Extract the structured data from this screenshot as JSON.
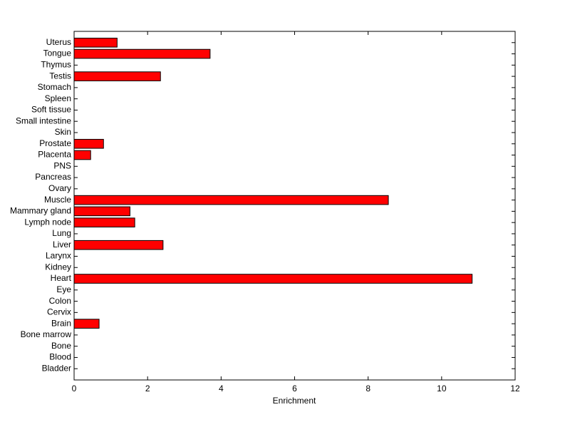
{
  "chart_data": {
    "type": "barh",
    "xlabel": "Enrichment",
    "categories": [
      "Bladder",
      "Blood",
      "Bone",
      "Bone marrow",
      "Brain",
      "Cervix",
      "Colon",
      "Eye",
      "Heart",
      "Kidney",
      "Larynx",
      "Liver",
      "Lung",
      "Lymph node",
      "Mammary gland",
      "Muscle",
      "Ovary",
      "Pancreas",
      "PNS",
      "Placenta",
      "Prostate",
      "Skin",
      "Small intestine",
      "Soft tissue",
      "Spleen",
      "Stomach",
      "Testis",
      "Thymus",
      "Tongue",
      "Uterus"
    ],
    "values": [
      0,
      0,
      0,
      0,
      0.68,
      0,
      0,
      0,
      10.83,
      0,
      0,
      2.42,
      0,
      1.65,
      1.52,
      8.55,
      0,
      0,
      0,
      0.45,
      0.8,
      0,
      0,
      0,
      0,
      0,
      2.35,
      0,
      3.7,
      1.17
    ],
    "color": "#ff0000",
    "xlim": [
      0,
      12
    ],
    "xticks": [
      0,
      2,
      4,
      6,
      8,
      10,
      12
    ]
  }
}
